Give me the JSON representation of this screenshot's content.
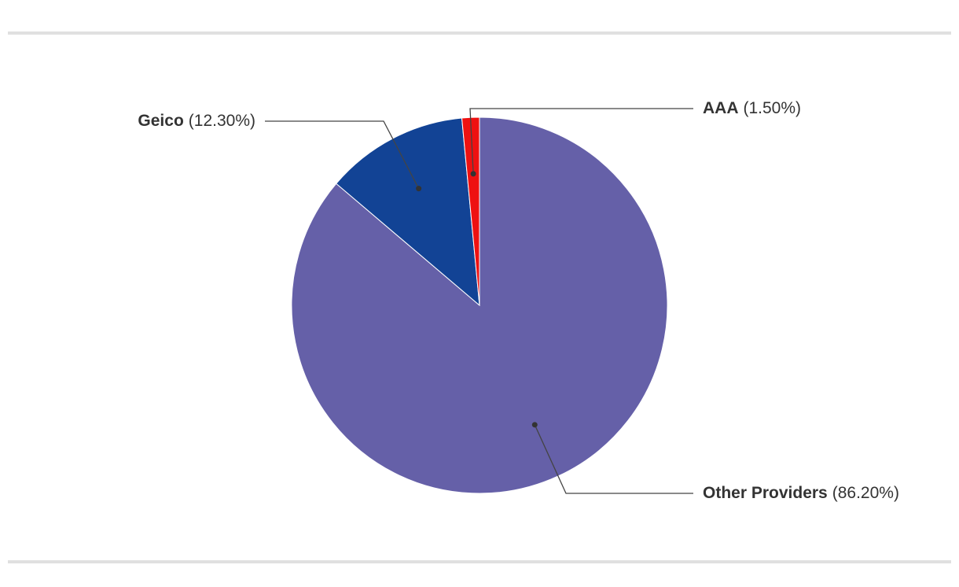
{
  "chart_data": {
    "type": "pie",
    "categories": [
      "Other Providers",
      "Geico",
      "AAA"
    ],
    "values": [
      86.2,
      12.3,
      1.5
    ],
    "value_labels": [
      "(86.20%)",
      "(12.30%)",
      "(1.50%)"
    ],
    "colors": [
      "#6560a8",
      "#124395",
      "#ee1111"
    ]
  }
}
